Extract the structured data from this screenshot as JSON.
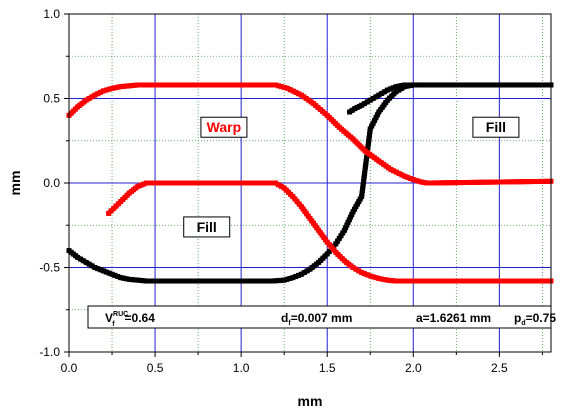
{
  "chart_data": {
    "type": "line",
    "title": "",
    "xlabel": "mm",
    "ylabel": "mm",
    "xlim": [
      0.0,
      2.8
    ],
    "ylim": [
      -1.0,
      1.0
    ],
    "xticks": [
      "0.0",
      "0.5",
      "1.0",
      "1.5",
      "2.0",
      "2.5"
    ],
    "yticks": [
      "-1.0",
      "-0.5",
      "0.0",
      "0.5",
      "1.0"
    ],
    "x_major_ticks": [
      0.0,
      0.5,
      1.0,
      1.5,
      2.0,
      2.5
    ],
    "y_major_ticks": [
      -1.0,
      -0.5,
      0.0,
      0.5,
      1.0
    ],
    "x_minor_ticks": [
      0.25,
      0.75,
      1.25,
      1.75,
      2.25,
      2.75
    ],
    "y_minor_ticks": [
      -0.75,
      -0.25,
      0.25,
      0.75
    ],
    "grid": true,
    "series": [
      {
        "name": "Fill",
        "color": "#000000",
        "x": [
          0.0,
          0.05,
          0.1,
          0.15,
          0.2,
          0.25,
          0.3,
          0.35,
          0.4,
          0.45,
          1.18,
          1.25,
          1.3,
          1.35,
          1.4,
          1.45,
          1.5,
          1.55,
          1.6,
          1.65,
          1.7,
          1.75,
          1.8,
          1.85,
          1.9,
          1.95,
          2.0,
          2.05,
          2.1,
          2.8
        ],
        "y": [
          -0.4,
          -0.44,
          -0.47,
          -0.5,
          -0.52,
          -0.54,
          -0.56,
          -0.57,
          -0.575,
          -0.58,
          -0.58,
          -0.575,
          -0.56,
          -0.54,
          -0.51,
          -0.47,
          -0.42,
          -0.36,
          -0.28,
          -0.17,
          -0.08,
          0.32,
          0.42,
          0.49,
          0.54,
          0.57,
          0.58,
          0.58,
          0.58,
          0.58
        ]
      },
      {
        "name": "Fill",
        "color": "#000000",
        "x": [
          1.63,
          1.66,
          1.7,
          1.75,
          1.8,
          1.85,
          1.9,
          1.95,
          2.0,
          2.05,
          2.8
        ],
        "y": [
          0.42,
          0.44,
          0.46,
          0.49,
          0.52,
          0.55,
          0.57,
          0.58,
          0.58,
          0.58,
          0.58
        ]
      },
      {
        "name": "Warp",
        "color": "#ff0000",
        "x": [
          0.0,
          0.05,
          0.1,
          0.15,
          0.2,
          0.25,
          0.3,
          0.35,
          0.4,
          0.45,
          1.2,
          1.27,
          1.35,
          1.42,
          1.5,
          1.57,
          1.65,
          1.72,
          1.8,
          1.87,
          1.95,
          2.0,
          2.05,
          2.08,
          2.1,
          2.8
        ],
        "y": [
          0.4,
          0.45,
          0.49,
          0.52,
          0.545,
          0.56,
          0.57,
          0.575,
          0.58,
          0.58,
          0.58,
          0.56,
          0.52,
          0.47,
          0.4,
          0.33,
          0.26,
          0.19,
          0.13,
          0.08,
          0.04,
          0.02,
          0.005,
          0.0,
          0.0,
          0.01
        ]
      },
      {
        "name": "Warp",
        "color": "#ff0000",
        "x": [
          0.23,
          0.26,
          0.3,
          0.35,
          0.4,
          0.45,
          1.2,
          1.25,
          1.3,
          1.35,
          1.4,
          1.45,
          1.5,
          1.55,
          1.6,
          1.65,
          1.7,
          1.75,
          1.8,
          1.85,
          1.9,
          1.95,
          2.0,
          2.05,
          2.1,
          2.8
        ],
        "y": [
          -0.18,
          -0.15,
          -0.11,
          -0.06,
          -0.02,
          0.0,
          0.0,
          -0.03,
          -0.08,
          -0.14,
          -0.21,
          -0.28,
          -0.35,
          -0.41,
          -0.46,
          -0.5,
          -0.53,
          -0.55,
          -0.565,
          -0.575,
          -0.58,
          -0.58,
          -0.58,
          -0.58,
          -0.58,
          -0.58
        ]
      }
    ],
    "annotations": [
      {
        "text": "Warp",
        "x": 0.9,
        "y": 0.33,
        "color": "#ff0000",
        "boxed": true
      },
      {
        "text": "Fill",
        "x": 2.48,
        "y": 0.33,
        "color": "#000000",
        "boxed": true
      },
      {
        "text": "Fill",
        "x": 0.8,
        "y": -0.26,
        "color": "#000000",
        "boxed": true
      }
    ],
    "info_box": {
      "vf_label": "V",
      "vf_sup": "RUC",
      "vf_sub": "f",
      "vf_value": "=0.64",
      "df_label": "d",
      "df_sub": "f",
      "df_value": "=0.007 mm",
      "a_text": "a=1.6261 mm",
      "pd_label": "p",
      "pd_sub": "d",
      "pd_value": "=0.75"
    }
  }
}
